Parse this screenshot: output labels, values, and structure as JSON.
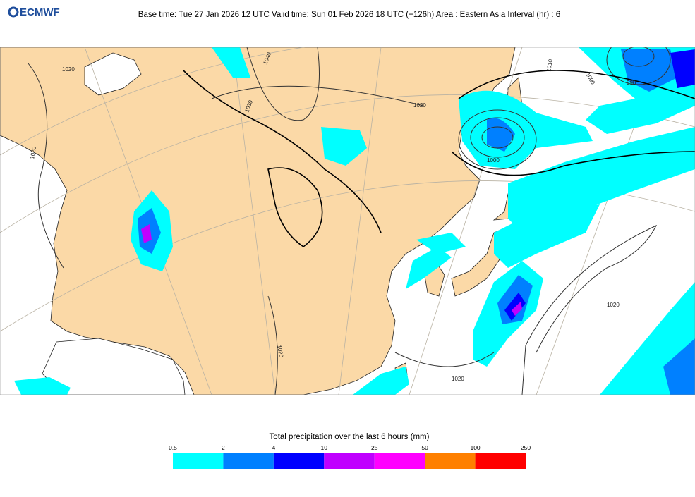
{
  "header": {
    "logo": "ECMWF",
    "title": "Base time: Tue 27 Jan 2026 12 UTC Valid time: Sun 01 Feb 2026 18 UTC (+126h) Area : Eastern Asia Interval (hr) : 6"
  },
  "isobar_labels": [
    "1020",
    "1040",
    "1030",
    "1020",
    "1010",
    "1000",
    "990",
    "1000",
    "1020",
    "1020",
    "1020",
    "1020"
  ],
  "legend": {
    "title": "Total precipitation over the last 6 hours (mm)",
    "ticks": [
      0.5,
      2,
      4,
      10,
      25,
      50,
      100,
      250
    ],
    "colors": [
      "#00ffff",
      "#0080ff",
      "#0000ff",
      "#c000ff",
      "#ff00ff",
      "#ff8000",
      "#ff0000"
    ]
  }
}
